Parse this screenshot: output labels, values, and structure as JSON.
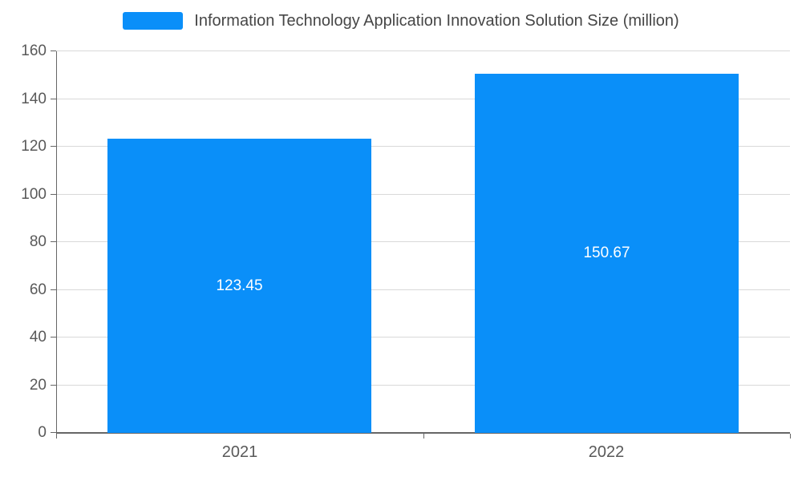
{
  "chart_data": {
    "type": "bar",
    "title": "",
    "legend": {
      "label": "Information Technology Application Innovation Solution Size (million)"
    },
    "legend_position": "top",
    "categories": [
      "2021",
      "2022"
    ],
    "series": [
      {
        "name": "Information Technology Application Innovation Solution Size (million)",
        "values": [
          123.45,
          150.67
        ],
        "value_labels": [
          "123.45",
          "150.67"
        ]
      }
    ],
    "xlabel": "",
    "ylabel": "",
    "ylim": [
      0,
      160
    ],
    "ytick_values": [
      0,
      20,
      40,
      60,
      80,
      100,
      120,
      140,
      160
    ],
    "ytick_labels": [
      "0",
      "20",
      "40",
      "60",
      "80",
      "100",
      "120",
      "140",
      "160"
    ],
    "grid": true,
    "colors": {
      "bar": "#0A8FF9",
      "grid_line": "#D9D9D9",
      "axis_line": "#666666",
      "axis_label": "#595959",
      "legend_text": "#464646",
      "value_label": "#FFFFFF",
      "background": "#FFFFFF"
    }
  }
}
